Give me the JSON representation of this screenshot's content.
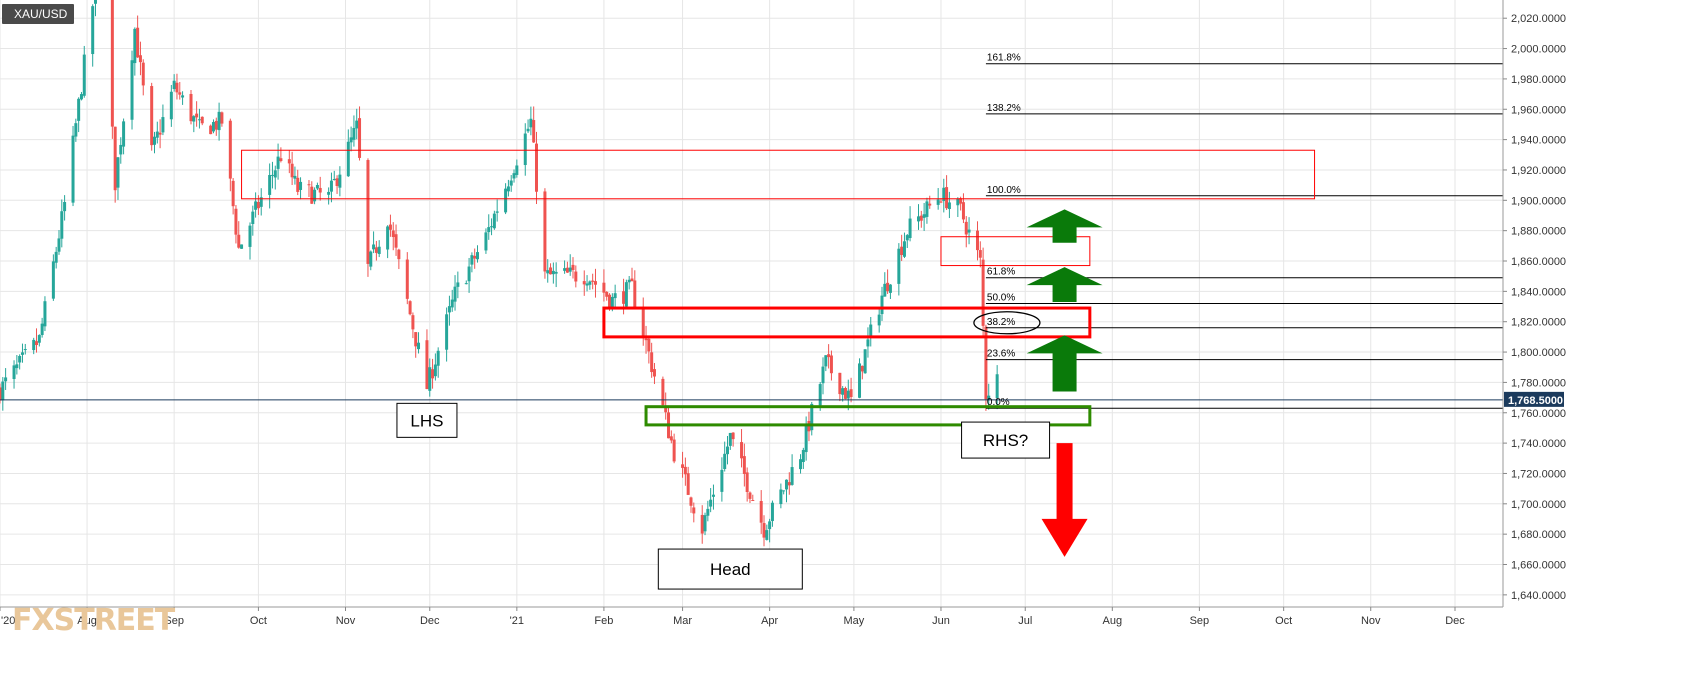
{
  "symbol": "XAU/USD",
  "logo": "FXSTREET",
  "price_tag": "1,768.5000",
  "colors": {
    "bull": "#26a69a",
    "bear": "#ef5350",
    "grid": "#e6e6e6",
    "axis_text": "#333333",
    "price_line": "#1b3a5c",
    "zone_red": "#ff0000",
    "zone_green": "#2e8b00",
    "arrow_green": "#0a7a0a",
    "arrow_red": "#ff0000"
  },
  "chart_data": {
    "type": "candlestick",
    "title": "",
    "xlabel": "",
    "ylabel": "",
    "ylim": [
      1632,
      2032
    ],
    "y_ticks": [
      "2,020.0000",
      "2,000.0000",
      "1,980.0000",
      "1,960.0000",
      "1,940.0000",
      "1,920.0000",
      "1,900.0000",
      "1,880.0000",
      "1,860.0000",
      "1,840.0000",
      "1,820.0000",
      "1,800.0000",
      "1,780.0000",
      "1,760.0000",
      "1,740.0000",
      "1,720.0000",
      "1,700.0000",
      "1,680.0000",
      "1,660.0000",
      "1,640.0000"
    ],
    "x_ticks": [
      "'20",
      "Aug",
      "Sep",
      "Oct",
      "Nov",
      "Dec",
      "'21",
      "Feb",
      "Mar",
      "Apr",
      "May",
      "Jun",
      "Jul",
      "Aug",
      "Sep",
      "Oct",
      "Nov",
      "Dec"
    ],
    "last_price": 1768.5,
    "price_path": [
      [
        "2020-07-01",
        1775
      ],
      [
        "2020-07-15",
        1808
      ],
      [
        "2020-07-24",
        1897
      ],
      [
        "2020-08-06",
        2068
      ],
      [
        "2020-08-11",
        1912
      ],
      [
        "2020-08-18",
        2013
      ],
      [
        "2020-08-24",
        1931
      ],
      [
        "2020-09-01",
        1975
      ],
      [
        "2020-09-10",
        1947
      ],
      [
        "2020-09-18",
        1952
      ],
      [
        "2020-09-24",
        1868
      ],
      [
        "2020-10-09",
        1930
      ],
      [
        "2020-10-15",
        1907
      ],
      [
        "2020-10-26",
        1902
      ],
      [
        "2020-11-05",
        1948
      ],
      [
        "2020-11-09",
        1855
      ],
      [
        "2020-11-16",
        1889
      ],
      [
        "2020-11-30",
        1777
      ],
      [
        "2020-12-10",
        1838
      ],
      [
        "2020-12-21",
        1876
      ],
      [
        "2021-01-06",
        1952
      ],
      [
        "2021-01-11",
        1850
      ],
      [
        "2021-01-26",
        1851
      ],
      [
        "2021-02-04",
        1834
      ],
      [
        "2021-02-11",
        1842
      ],
      [
        "2021-02-26",
        1734
      ],
      [
        "2021-03-08",
        1684
      ],
      [
        "2021-03-18",
        1744
      ],
      [
        "2021-03-30",
        1684
      ],
      [
        "2021-04-12",
        1733
      ],
      [
        "2021-04-21",
        1793
      ],
      [
        "2021-04-30",
        1768
      ],
      [
        "2021-05-11",
        1837
      ],
      [
        "2021-05-20",
        1880
      ],
      [
        "2021-06-01",
        1904
      ],
      [
        "2021-06-08",
        1893
      ],
      [
        "2021-06-15",
        1859
      ],
      [
        "2021-06-17",
        1773
      ],
      [
        "2021-06-21",
        1782
      ]
    ],
    "fibonacci": [
      {
        "label": "161.8%",
        "price": 1990
      },
      {
        "label": "138.2%",
        "price": 1957
      },
      {
        "label": "100.0%",
        "price": 1903
      },
      {
        "label": "61.8%",
        "price": 1849
      },
      {
        "label": "50.0%",
        "price": 1832
      },
      {
        "label": "38.2%",
        "price": 1816
      },
      {
        "label": "23.6%",
        "price": 1795
      },
      {
        "label": "0.0%",
        "price": 1763
      }
    ],
    "zones": [
      {
        "name": "upper-resistance-zone",
        "from": "2020-09-25",
        "to": "2021-10-12",
        "top": 1933,
        "bottom": 1901,
        "color": "zone_red",
        "width": 1
      },
      {
        "name": "june-supply-zone",
        "from": "2021-06-01",
        "to": "2021-07-24",
        "top": 1876,
        "bottom": 1857,
        "color": "zone_red",
        "width": 1
      },
      {
        "name": "mid-resistance-zone",
        "from": "2021-02-01",
        "to": "2021-07-24",
        "top": 1829,
        "bottom": 1810,
        "color": "zone_red",
        "width": 3
      },
      {
        "name": "neckline-support-zone",
        "from": "2021-02-16",
        "to": "2021-07-24",
        "top": 1764,
        "bottom": 1752,
        "color": "zone_green",
        "width": 3
      }
    ],
    "pattern_labels": [
      {
        "name": "lhs",
        "text": "LHS",
        "date": "2020-11-30",
        "price": 1755
      },
      {
        "name": "head",
        "text": "Head",
        "date": "2021-03-18",
        "price": 1657
      },
      {
        "name": "rhs",
        "text": "RHS?",
        "date": "2021-06-24",
        "price": 1742
      }
    ],
    "arrows": [
      {
        "name": "green-arrow-up-top",
        "direction": "up",
        "date": "2021-07-15",
        "tip": 1894,
        "tail": 1872,
        "color": "arrow_green"
      },
      {
        "name": "green-arrow-up-mid",
        "direction": "up",
        "date": "2021-07-15",
        "tip": 1856,
        "tail": 1833,
        "color": "arrow_green"
      },
      {
        "name": "green-arrow-up-low",
        "direction": "up",
        "date": "2021-07-15",
        "tip": 1811,
        "tail": 1774,
        "color": "arrow_green"
      },
      {
        "name": "red-arrow-down",
        "direction": "down",
        "date": "2021-07-15",
        "tip": 1665,
        "tail": 1740,
        "color": "arrow_red"
      }
    ]
  }
}
